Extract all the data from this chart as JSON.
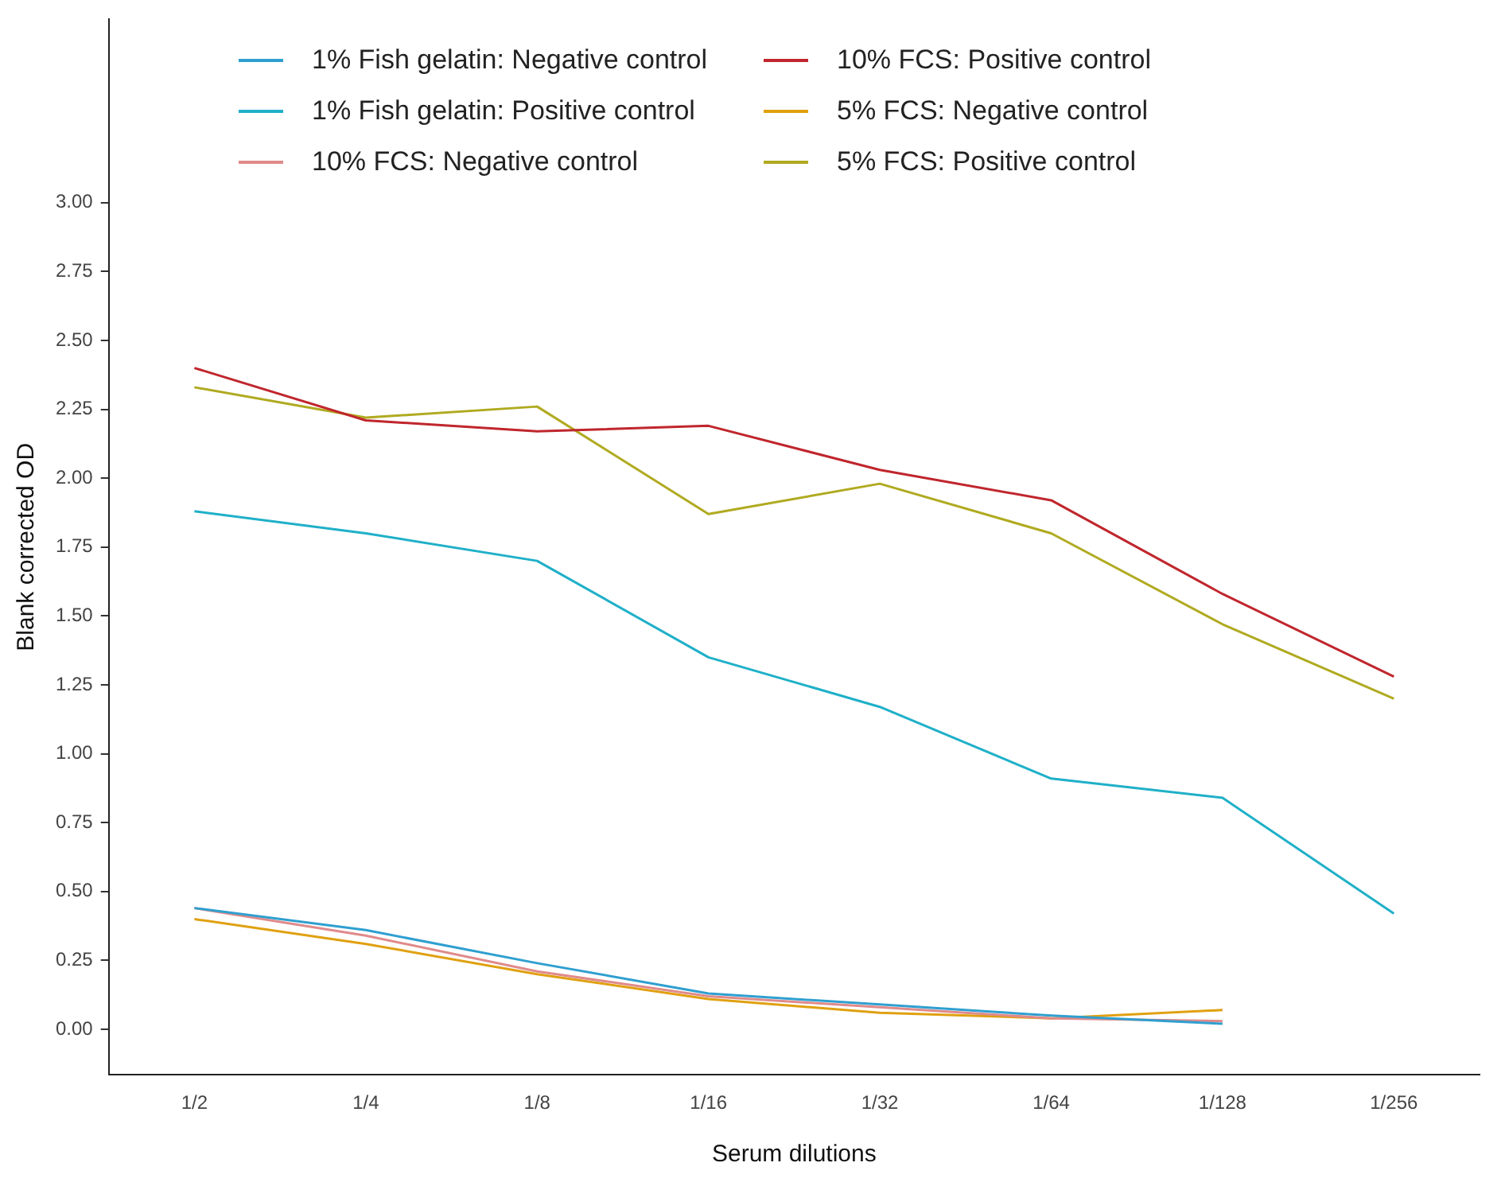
{
  "chart_data": {
    "type": "line",
    "xlabel": "Serum dilutions",
    "ylabel": "Blank corrected OD",
    "categories": [
      "1/2",
      "1/4",
      "1/8",
      "1/16",
      "1/32",
      "1/64",
      "1/128",
      "1/256"
    ],
    "series": [
      {
        "name": "1% Fish gelatin: Negative control",
        "color": "#2f9fd0",
        "values": [
          0.44,
          0.36,
          0.24,
          0.13,
          0.09,
          0.05,
          0.02,
          null
        ]
      },
      {
        "name": "1% Fish gelatin: Positive control",
        "color": "#1fb0c8",
        "values": [
          1.88,
          1.8,
          1.7,
          1.35,
          1.17,
          0.91,
          0.84,
          0.42
        ]
      },
      {
        "name": "10% FCS: Negative control",
        "color": "#e08a8a",
        "values": [
          0.44,
          0.34,
          0.21,
          0.12,
          0.08,
          0.04,
          0.03,
          null
        ]
      },
      {
        "name": "10% FCS: Positive control",
        "color": "#c0262d",
        "values": [
          2.4,
          2.21,
          2.17,
          2.19,
          2.03,
          1.92,
          1.58,
          1.28
        ]
      },
      {
        "name": "5% FCS: Negative control",
        "color": "#e0a010",
        "values": [
          0.4,
          0.31,
          0.2,
          0.11,
          0.06,
          0.04,
          0.07,
          null
        ]
      },
      {
        "name": "5% FCS: Positive control",
        "color": "#b0aa20",
        "values": [
          2.33,
          2.22,
          2.26,
          1.87,
          1.98,
          1.8,
          1.47,
          1.2
        ]
      }
    ],
    "ylim": [
      -0.165,
      3.665
    ],
    "yticks": [
      {
        "value": 0,
        "label": "0.00"
      },
      {
        "value": 0.25,
        "label": "0.25"
      },
      {
        "value": 0.5,
        "label": "0.50"
      },
      {
        "value": 0.75,
        "label": "0.75"
      },
      {
        "value": 1,
        "label": "1.00"
      },
      {
        "value": 1.25,
        "label": "1.25"
      },
      {
        "value": 1.5,
        "label": "1.50"
      },
      {
        "value": 1.75,
        "label": "1.75"
      },
      {
        "value": 2,
        "label": "2.00"
      },
      {
        "value": 2.25,
        "label": "2.25"
      },
      {
        "value": 2.5,
        "label": "2.50"
      },
      {
        "value": 2.75,
        "label": "2.75"
      },
      {
        "value": 3,
        "label": "3.00"
      }
    ],
    "grid": false,
    "legend": "top",
    "marker": "none",
    "line_style": "solid"
  }
}
